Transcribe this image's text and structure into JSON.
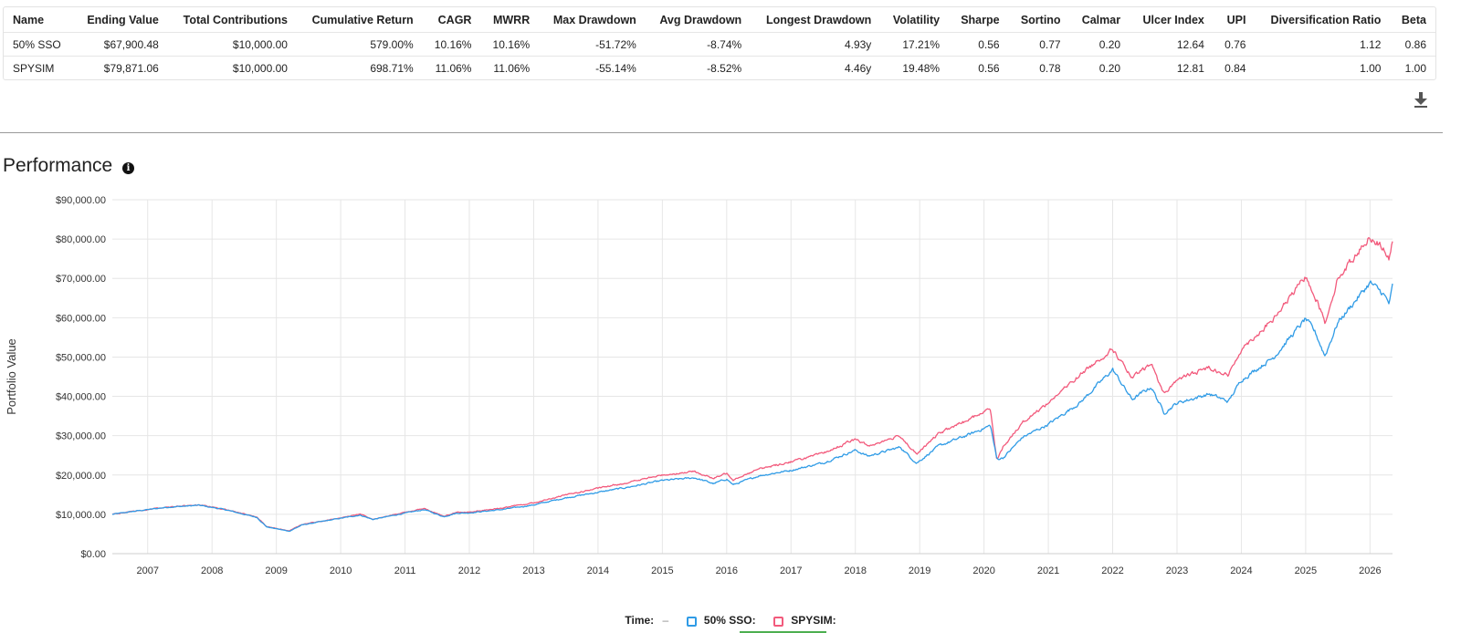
{
  "metrics_table": {
    "columns": [
      "Name",
      "Ending Value",
      "Total Contributions",
      "Cumulative Return",
      "CAGR",
      "MWRR",
      "Max Drawdown",
      "Avg Drawdown",
      "Longest Drawdown",
      "Volatility",
      "Sharpe",
      "Sortino",
      "Calmar",
      "Ulcer Index",
      "UPI",
      "Diversification Ratio",
      "Beta"
    ],
    "rows": [
      [
        "50% SSO",
        "$67,900.48",
        "$10,000.00",
        "579.00%",
        "10.16%",
        "10.16%",
        "-51.72%",
        "-8.74%",
        "4.93y",
        "17.21%",
        "0.56",
        "0.77",
        "0.20",
        "12.64",
        "0.76",
        "1.12",
        "0.86"
      ],
      [
        "SPYSIM",
        "$79,871.06",
        "$10,000.00",
        "698.71%",
        "11.06%",
        "11.06%",
        "-55.14%",
        "-8.52%",
        "4.46y",
        "19.48%",
        "0.56",
        "0.78",
        "0.20",
        "12.81",
        "0.84",
        "1.00",
        "1.00"
      ]
    ]
  },
  "download_icon": "download-icon",
  "section": {
    "title": "Performance",
    "info_icon": "info-icon",
    "info_glyph": "i"
  },
  "legend": {
    "time_label": "Time:",
    "time_value": "–"
  },
  "colors": {
    "series_blue": "#2f9be6",
    "series_red": "#f25a7c",
    "grid": "#e6e6e6"
  },
  "chart_data": {
    "type": "line",
    "ylabel": "Portfolio Value",
    "xlabel": "",
    "ylim": [
      0,
      90000
    ],
    "xlim": [
      2006.45,
      2026.35
    ],
    "y_ticks": [
      0,
      10000,
      20000,
      30000,
      40000,
      50000,
      60000,
      70000,
      80000,
      90000
    ],
    "y_tick_labels": [
      "$0.00",
      "$10,000.00",
      "$20,000.00",
      "$30,000.00",
      "$40,000.00",
      "$50,000.00",
      "$60,000.00",
      "$70,000.00",
      "$80,000.00",
      "$90,000.00"
    ],
    "x_ticks": [
      2007,
      2008,
      2009,
      2010,
      2011,
      2012,
      2013,
      2014,
      2015,
      2016,
      2017,
      2018,
      2019,
      2020,
      2021,
      2022,
      2023,
      2024,
      2025,
      2026
    ],
    "x_tick_labels": [
      "2007",
      "2008",
      "2009",
      "2010",
      "2011",
      "2012",
      "2013",
      "2014",
      "2015",
      "2016",
      "2017",
      "2018",
      "2019",
      "2020",
      "2021",
      "2022",
      "2023",
      "2024",
      "2025",
      "2026"
    ],
    "grid": true,
    "legend_position": "bottom",
    "x": [
      2006.45,
      2006.8,
      2007.3,
      2007.8,
      2008.2,
      2008.7,
      2008.85,
      2009.2,
      2009.4,
      2010.0,
      2010.3,
      2010.5,
      2011.0,
      2011.3,
      2011.6,
      2011.8,
      2012.0,
      2012.5,
      2013.0,
      2013.5,
      2014.0,
      2014.5,
      2015.0,
      2015.5,
      2015.8,
      2016.0,
      2016.1,
      2016.5,
      2017.0,
      2017.5,
      2018.0,
      2018.2,
      2018.7,
      2018.95,
      2019.3,
      2019.8,
      2020.1,
      2020.2,
      2020.3,
      2020.6,
      2021.0,
      2021.5,
      2022.0,
      2022.3,
      2022.6,
      2022.8,
      2023.0,
      2023.5,
      2023.8,
      2024.0,
      2024.5,
      2025.0,
      2025.15,
      2025.3,
      2025.5,
      2026.0,
      2026.2,
      2026.3,
      2026.35
    ],
    "series": [
      {
        "name": "50% SSO",
        "color": "#2f9be6",
        "values": [
          10000,
          10800,
          11800,
          12300,
          11200,
          9200,
          6800,
          5700,
          7300,
          9000,
          9800,
          8700,
          10300,
          11200,
          9400,
          10300,
          10400,
          11200,
          12400,
          14200,
          15600,
          17000,
          18600,
          19300,
          17800,
          19000,
          17500,
          19800,
          21200,
          23100,
          26300,
          24800,
          27100,
          23000,
          27400,
          30500,
          32600,
          24000,
          24400,
          29600,
          32900,
          38500,
          46800,
          39200,
          42400,
          35800,
          38300,
          40600,
          38700,
          44200,
          49900,
          59700,
          56200,
          50300,
          58800,
          68900,
          66200,
          63500,
          67900
        ]
      },
      {
        "name": "SPYSIM",
        "color": "#f25a7c",
        "values": [
          10000,
          10800,
          11900,
          12400,
          11300,
          9300,
          6900,
          5800,
          7400,
          9100,
          10100,
          8800,
          10500,
          11500,
          9500,
          10500,
          10600,
          11600,
          12900,
          14900,
          16600,
          18200,
          20000,
          20900,
          19100,
          20500,
          18900,
          21500,
          23400,
          25500,
          29100,
          27400,
          30000,
          25200,
          30600,
          34400,
          36900,
          23700,
          27300,
          33400,
          38400,
          45600,
          52100,
          44600,
          48300,
          40600,
          44300,
          47400,
          45300,
          52100,
          59600,
          70500,
          65500,
          58800,
          70000,
          80700,
          77900,
          74500,
          79900
        ]
      }
    ]
  }
}
